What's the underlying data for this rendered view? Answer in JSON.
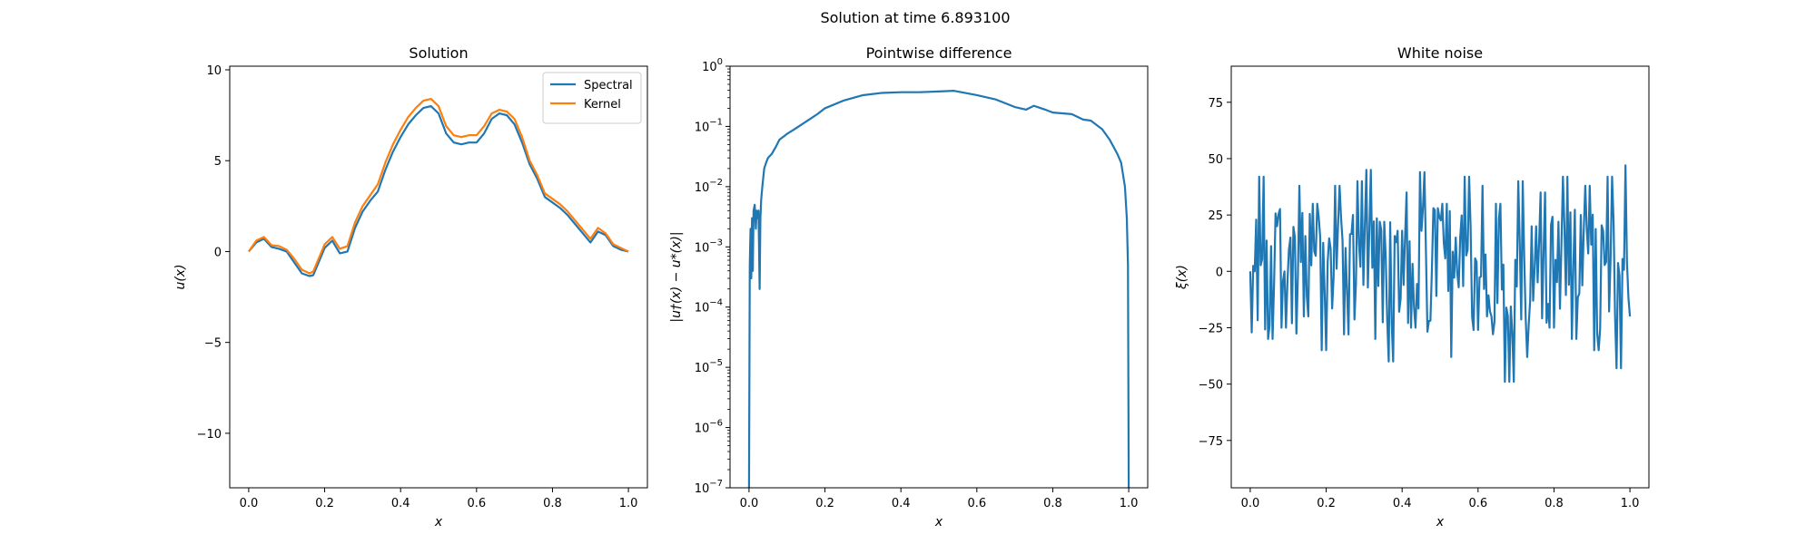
{
  "figure": {
    "suptitle": "Solution at time 6.893100"
  },
  "chart_data": [
    {
      "type": "line",
      "title": "Solution",
      "xlabel": "x",
      "ylabel": "u(x)",
      "xlim": [
        -0.05,
        1.05
      ],
      "ylim": [
        -13.0,
        10.2
      ],
      "xticks": [
        0.0,
        0.2,
        0.4,
        0.6,
        0.8,
        1.0
      ],
      "xtick_labels": [
        "0.0",
        "0.2",
        "0.4",
        "0.6",
        "0.8",
        "1.0"
      ],
      "yticks": [
        10,
        5,
        0,
        -5,
        -10
      ],
      "ytick_labels": [
        "10",
        "5",
        "0",
        "−5",
        "−10"
      ],
      "legend": {
        "placement": "top-right"
      },
      "series": [
        {
          "name": "Spectral",
          "color": "#1f77b4",
          "x": [
            0.0,
            0.02,
            0.04,
            0.06,
            0.08,
            0.1,
            0.12,
            0.14,
            0.16,
            0.17,
            0.2,
            0.22,
            0.24,
            0.26,
            0.28,
            0.3,
            0.32,
            0.34,
            0.36,
            0.38,
            0.4,
            0.42,
            0.44,
            0.46,
            0.48,
            0.5,
            0.52,
            0.54,
            0.56,
            0.58,
            0.6,
            0.62,
            0.64,
            0.66,
            0.68,
            0.7,
            0.72,
            0.74,
            0.76,
            0.78,
            0.8,
            0.82,
            0.84,
            0.86,
            0.88,
            0.9,
            0.92,
            0.94,
            0.96,
            0.98,
            1.0
          ],
          "y": [
            0.0,
            0.5,
            0.7,
            0.25,
            0.15,
            0.0,
            -0.6,
            -1.2,
            -1.35,
            -1.3,
            0.2,
            0.6,
            -0.1,
            0.0,
            1.3,
            2.2,
            2.8,
            3.3,
            4.5,
            5.5,
            6.3,
            7.0,
            7.5,
            7.9,
            8.0,
            7.6,
            6.5,
            6.0,
            5.9,
            6.0,
            6.0,
            6.5,
            7.3,
            7.6,
            7.5,
            7.0,
            6.0,
            4.8,
            4.0,
            3.0,
            2.7,
            2.4,
            2.0,
            1.5,
            1.0,
            0.5,
            1.1,
            0.9,
            0.3,
            0.1,
            0.0
          ]
        },
        {
          "name": "Kernel",
          "color": "#ff7f0e",
          "x": [
            0.0,
            0.02,
            0.04,
            0.06,
            0.08,
            0.1,
            0.12,
            0.14,
            0.16,
            0.17,
            0.2,
            0.22,
            0.24,
            0.26,
            0.28,
            0.3,
            0.32,
            0.34,
            0.36,
            0.38,
            0.4,
            0.42,
            0.44,
            0.46,
            0.48,
            0.5,
            0.52,
            0.54,
            0.56,
            0.58,
            0.6,
            0.62,
            0.64,
            0.66,
            0.68,
            0.7,
            0.72,
            0.74,
            0.76,
            0.78,
            0.8,
            0.82,
            0.84,
            0.86,
            0.88,
            0.9,
            0.92,
            0.94,
            0.96,
            0.98,
            1.0
          ],
          "y": [
            0.0,
            0.6,
            0.8,
            0.35,
            0.3,
            0.1,
            -0.4,
            -1.0,
            -1.2,
            -1.1,
            0.4,
            0.8,
            0.15,
            0.3,
            1.6,
            2.5,
            3.1,
            3.7,
            4.9,
            5.9,
            6.7,
            7.4,
            7.9,
            8.3,
            8.4,
            8.0,
            6.9,
            6.4,
            6.3,
            6.4,
            6.4,
            6.9,
            7.6,
            7.8,
            7.7,
            7.3,
            6.3,
            5.0,
            4.2,
            3.2,
            2.9,
            2.6,
            2.2,
            1.7,
            1.2,
            0.7,
            1.3,
            1.0,
            0.4,
            0.2,
            0.0
          ]
        }
      ]
    },
    {
      "type": "line",
      "title": "Pointwise difference",
      "xlabel": "x",
      "ylabel": "|u†(x) − u*(x)|",
      "yscale": "log",
      "xlim": [
        -0.05,
        1.05
      ],
      "ylim_log10": [
        -7,
        0
      ],
      "xticks": [
        0.0,
        0.2,
        0.4,
        0.6,
        0.8,
        1.0
      ],
      "xtick_labels": [
        "0.0",
        "0.2",
        "0.4",
        "0.6",
        "0.8",
        "1.0"
      ],
      "ytick_exponents": [
        0,
        -1,
        -2,
        -3,
        -4,
        -5,
        -6,
        -7
      ],
      "series": [
        {
          "name": "",
          "color": "#1f77b4",
          "x": [
            0.0,
            0.002,
            0.004,
            0.006,
            0.008,
            0.01,
            0.012,
            0.015,
            0.018,
            0.02,
            0.022,
            0.025,
            0.028,
            0.03,
            0.032,
            0.035,
            0.04,
            0.045,
            0.05,
            0.06,
            0.07,
            0.08,
            0.1,
            0.12,
            0.15,
            0.18,
            0.2,
            0.25,
            0.3,
            0.35,
            0.4,
            0.45,
            0.5,
            0.54,
            0.6,
            0.65,
            0.7,
            0.73,
            0.75,
            0.78,
            0.8,
            0.85,
            0.88,
            0.9,
            0.93,
            0.95,
            0.97,
            0.98,
            0.99,
            0.995,
            0.998,
            1.0
          ],
          "y": [
            1e-07,
            0.0005,
            0.002,
            0.0003,
            0.003,
            0.0004,
            0.004,
            0.005,
            0.002,
            0.004,
            0.003,
            0.004,
            0.0002,
            0.003,
            0.006,
            0.01,
            0.02,
            0.025,
            0.03,
            0.035,
            0.045,
            0.06,
            0.075,
            0.09,
            0.12,
            0.16,
            0.2,
            0.27,
            0.33,
            0.36,
            0.37,
            0.37,
            0.38,
            0.39,
            0.33,
            0.28,
            0.21,
            0.19,
            0.22,
            0.19,
            0.17,
            0.16,
            0.13,
            0.125,
            0.09,
            0.06,
            0.035,
            0.025,
            0.01,
            0.003,
            0.0005,
            1e-07
          ]
        }
      ]
    },
    {
      "type": "line",
      "title": "White noise",
      "xlabel": "x",
      "ylabel": "ξ(x)",
      "xlim": [
        -0.05,
        1.05
      ],
      "ylim": [
        -96,
        91
      ],
      "xticks": [
        0.0,
        0.2,
        0.4,
        0.6,
        0.8,
        1.0
      ],
      "xtick_labels": [
        "0.0",
        "0.2",
        "0.4",
        "0.6",
        "0.8",
        "1.0"
      ],
      "yticks": [
        75,
        50,
        25,
        0,
        -25,
        -50,
        -75
      ],
      "ytick_labels": [
        "75",
        "50",
        "25",
        "0",
        "−25",
        "−50",
        "−75"
      ],
      "series": [
        {
          "name": "",
          "color": "#1f77b4",
          "n_points": 256,
          "range": [
            -49,
            47
          ],
          "x": [
            0.0,
            0.02,
            0.04,
            0.06,
            0.08,
            0.1,
            0.12,
            0.14,
            0.16,
            0.18,
            0.2,
            0.22,
            0.24,
            0.26,
            0.28,
            0.3,
            0.32,
            0.34,
            0.36,
            0.38,
            0.4,
            0.42,
            0.44,
            0.46,
            0.48,
            0.5,
            0.52,
            0.54,
            0.56,
            0.58,
            0.6,
            0.62,
            0.64,
            0.66,
            0.67,
            0.7,
            0.72,
            0.74,
            0.76,
            0.78,
            0.8,
            0.82,
            0.84,
            0.86,
            0.88,
            0.9,
            0.92,
            0.94,
            0.96,
            0.98,
            0.99,
            1.0
          ],
          "y": [
            0,
            42,
            -30,
            20,
            -25,
            15,
            38,
            -20,
            30,
            -35,
            10,
            38,
            -28,
            25,
            40,
            45,
            -30,
            22,
            -40,
            18,
            35,
            -25,
            44,
            -22,
            28,
            30,
            -38,
            15,
            42,
            -26,
            38,
            -20,
            30,
            -18,
            -49,
            40,
            -38,
            20,
            35,
            -25,
            22,
            42,
            -30,
            25,
            38,
            -35,
            18,
            42,
            -43,
            47,
            -20,
            10
          ]
        }
      ]
    }
  ]
}
